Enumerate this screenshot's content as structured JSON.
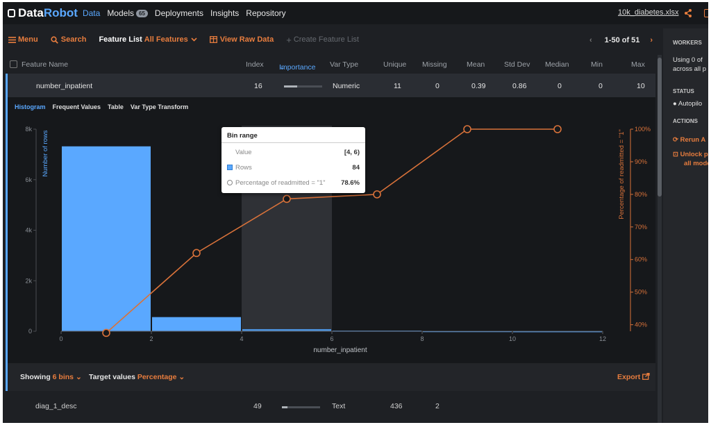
{
  "topbar": {
    "logo_text_1": "Data",
    "logo_text_2": "Robot",
    "nav": {
      "data": "Data",
      "models": "Models",
      "models_count": "65",
      "deployments": "Deployments",
      "insights": "Insights",
      "repository": "Repository"
    },
    "file_name": "10k_diabetes.xlsx"
  },
  "toolbar": {
    "menu": "Menu",
    "search": "Search",
    "feature_list_label": "Feature List",
    "feature_list_value": "All Features",
    "view_raw_data": "View Raw Data",
    "create_feature_list": "Create Feature List",
    "pagination": "1-50 of 51"
  },
  "table": {
    "headers": {
      "feature_name": "Feature Name",
      "index": "Index",
      "importance": "Importance",
      "var_type": "Var Type",
      "unique": "Unique",
      "missing": "Missing",
      "mean": "Mean",
      "std_dev": "Std Dev",
      "median": "Median",
      "min": "Min",
      "max": "Max"
    },
    "selected_row": {
      "name": "number_inpatient",
      "index": "16",
      "importance": 0.35,
      "var_type": "Numeric",
      "unique": "11",
      "missing": "0",
      "mean": "0.39",
      "std_dev": "0.86",
      "median": "0",
      "min": "0",
      "max": "10"
    },
    "next_row": {
      "name": "diag_1_desc",
      "index": "49",
      "importance": 0.15,
      "var_type": "Text",
      "unique": "436",
      "missing": "2"
    }
  },
  "detail_tabs": {
    "histogram": "Histogram",
    "frequent_values": "Frequent Values",
    "table": "Table",
    "var_type_transform": "Var Type Transform"
  },
  "tooltip": {
    "title": "Bin range",
    "value_label": "Value",
    "value": "[4, 6)",
    "rows_label": "Rows",
    "rows": "84",
    "pct_label": "Percentage of readmitted = \"1\"",
    "pct": "78.6%"
  },
  "controls": {
    "showing_label": "Showing",
    "showing_value": "6 bins",
    "target_label": "Target values",
    "target_value": "Percentage",
    "export": "Export"
  },
  "sidebar": {
    "workers": "WORKERS",
    "workers_text_1": "Using 0 of",
    "workers_text_2": "across all p",
    "status": "STATUS",
    "status_text": "Autopilo",
    "actions": "ACTIONS",
    "rerun": "Rerun A",
    "unlock_1": "Unlock p",
    "unlock_2": "all mode"
  },
  "colors": {
    "accent_blue": "#5aa8ff",
    "accent_orange": "#e87d3e",
    "bar_blue": "#5aa8ff",
    "line_orange": "#d9723a"
  },
  "chart_data": {
    "type": "bar",
    "xlabel": "number_inpatient",
    "ylabel": "Number of rows",
    "y2label": "Percentage of readmitted = \"1\"",
    "xlim": [
      0,
      12
    ],
    "ylim": [
      0,
      8000
    ],
    "y2lim": [
      38,
      100
    ],
    "x_ticks": [
      0,
      2,
      4,
      6,
      8,
      10,
      12
    ],
    "y_ticks": [
      "0",
      "2k",
      "4k",
      "6k",
      "8k"
    ],
    "y2_ticks": [
      "40%",
      "50%",
      "60%",
      "70%",
      "80%",
      "90%",
      "100%"
    ],
    "bins": [
      {
        "range": [
          0,
          2
        ],
        "rows": 7320
      },
      {
        "range": [
          2,
          4
        ],
        "rows": 560
      },
      {
        "range": [
          4,
          6
        ],
        "rows": 84
      },
      {
        "range": [
          6,
          8
        ],
        "rows": 24
      },
      {
        "range": [
          8,
          10
        ],
        "rows": 8
      },
      {
        "range": [
          10,
          12
        ],
        "rows": 4
      }
    ],
    "highlighted_bin": 2,
    "line": {
      "name": "Percentage of readmitted = \"1\"",
      "x": [
        1,
        3,
        5,
        7,
        9,
        11
      ],
      "y": [
        37.5,
        62,
        78.6,
        80,
        100,
        100
      ]
    }
  }
}
